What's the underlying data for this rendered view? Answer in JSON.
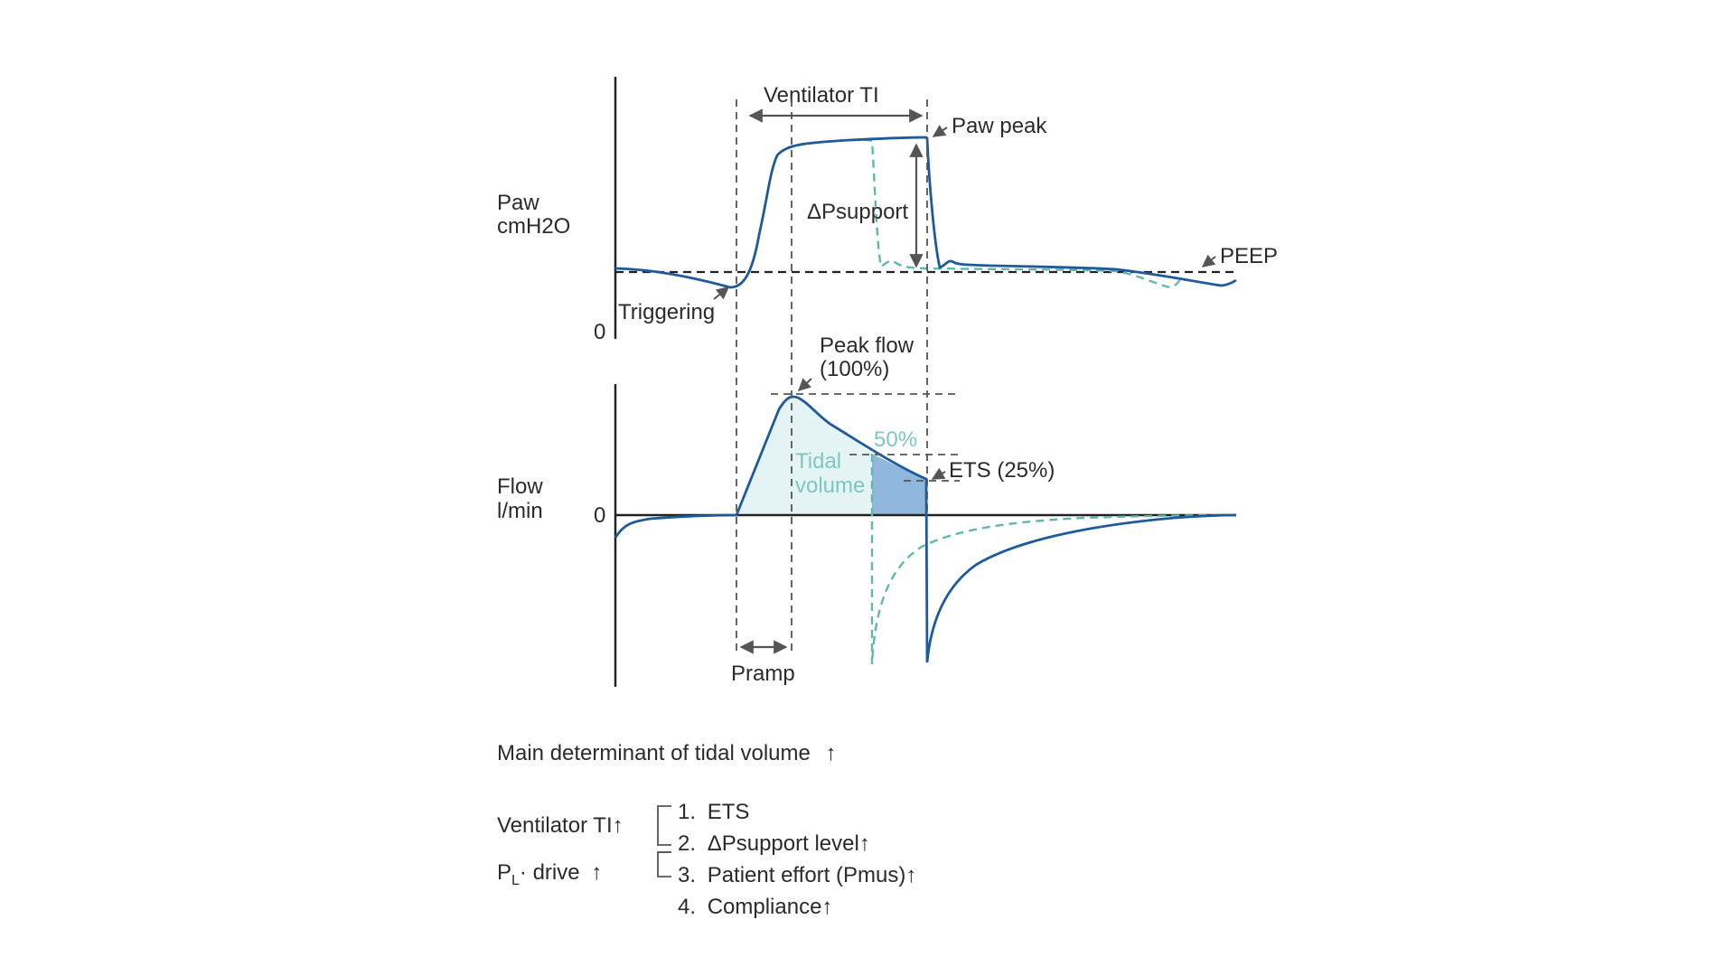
{
  "paw_panel": {
    "ylabel_line1": "Paw",
    "ylabel_line2": "cmH2O",
    "zero": "0",
    "ventilator_ti": "Ventilator TI",
    "paw_peak": "Paw peak",
    "delta_psupport": "ΔPsupport",
    "peep": "PEEP",
    "triggering": "Triggering"
  },
  "flow_panel": {
    "ylabel_line1": "Flow",
    "ylabel_line2": "l/min",
    "zero": "0",
    "peak_flow_line1": "Peak flow",
    "peak_flow_line2": "(100%)",
    "pct_50": "50%",
    "tidal_line1": "Tidal",
    "tidal_line2": "volume",
    "ets": "ETS (25%)",
    "pramp": "Pramp"
  },
  "legend": {
    "main_determinant": "Main determinant of tidal volume",
    "ventilator_ti": "Ventilator TI",
    "pl_drive_p": "P",
    "pl_drive_sub": "L",
    "pl_drive_rest": "· drive",
    "up_arrow": "↑",
    "items": [
      {
        "num": "1.",
        "text": "ETS",
        "arrow": ""
      },
      {
        "num": "2.",
        "text": "ΔPsupport level",
        "arrow": "↑"
      },
      {
        "num": "3.",
        "text": "Patient effort (Pmus)",
        "arrow": "↑"
      },
      {
        "num": "4.",
        "text": "Compliance",
        "arrow": "↑"
      }
    ]
  },
  "colors": {
    "solid_trace": "#1f5a9a",
    "dashed_trace": "#5fb7ad",
    "tidal_fill": "#e4f3f3",
    "ets_fill": "#8fb6dc",
    "guide": "#555555"
  }
}
